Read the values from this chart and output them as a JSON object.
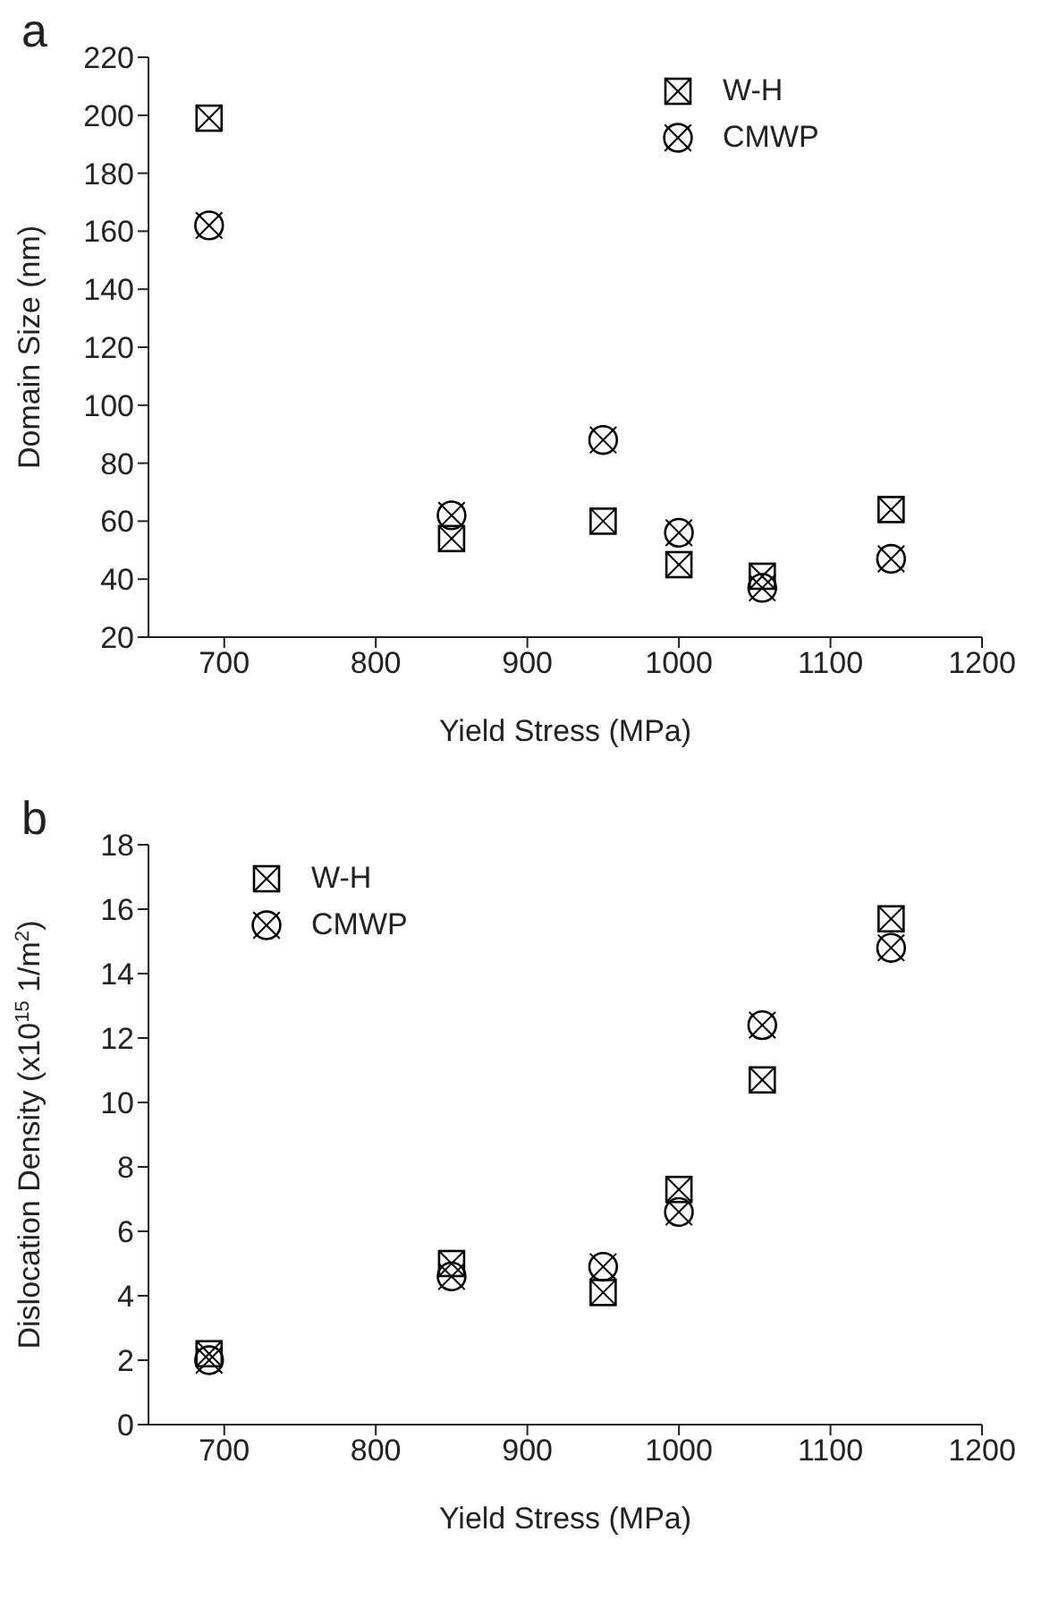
{
  "chart_data": [
    {
      "type": "scatter",
      "title": "a",
      "xlabel": "Yield Stress (MPa)",
      "ylabel": "Domain Size (nm)",
      "x": [
        690,
        850,
        950,
        1000,
        1055,
        1140
      ],
      "series": [
        {
          "name": "W-H",
          "color": "#000000",
          "marker": "square",
          "values": [
            199,
            54,
            60,
            45,
            41,
            64
          ]
        },
        {
          "name": "CMWP",
          "color": "#000000",
          "marker": "circle",
          "values": [
            162,
            62,
            88,
            56,
            37,
            47
          ]
        }
      ],
      "xlim": [
        650,
        1200
      ],
      "xticks": [
        700,
        800,
        900,
        1000,
        1100,
        1200
      ],
      "ylim": [
        20,
        220
      ],
      "yticks": [
        20,
        40,
        60,
        80,
        100,
        120,
        140,
        160,
        180,
        200,
        220
      ],
      "grid": false,
      "legend": "top right"
    },
    {
      "type": "scatter",
      "title": "b",
      "xlabel": "Yield Stress (MPa)",
      "ylabel": "Dislocation Density (x10$^{15}$ 1/m$^{2}$)",
      "x": [
        690,
        850,
        950,
        1000,
        1055,
        1140
      ],
      "series": [
        {
          "name": "W-H",
          "color": "#000000",
          "marker": "square",
          "values": [
            2.2,
            5.0,
            4.1,
            7.3,
            10.7,
            15.7
          ]
        },
        {
          "name": "CMWP",
          "color": "#000000",
          "marker": "circle",
          "values": [
            2.0,
            4.6,
            4.9,
            6.6,
            12.4,
            14.8
          ]
        }
      ],
      "xlim": [
        650,
        1200
      ],
      "xticks": [
        700,
        800,
        900,
        1000,
        1100,
        1200
      ],
      "ylim": [
        0,
        18
      ],
      "yticks": [
        0,
        2,
        4,
        6,
        8,
        10,
        12,
        14,
        16,
        18
      ],
      "grid": false,
      "legend": "top left"
    }
  ]
}
